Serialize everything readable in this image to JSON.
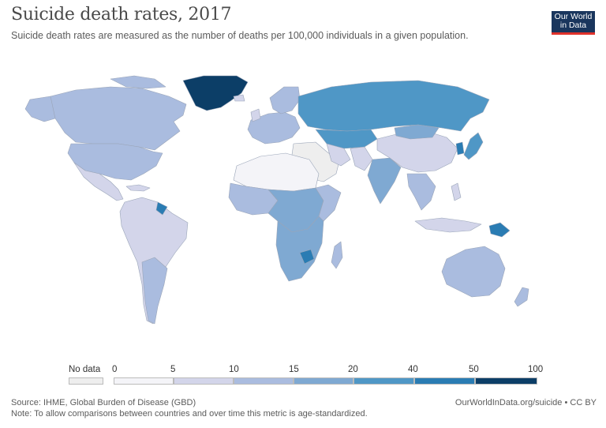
{
  "header": {
    "title": "Suicide death rates, 2017",
    "subtitle": "Suicide death rates are measured as the number of deaths per 100,000 individuals in a given population."
  },
  "logo": {
    "line1": "Our World",
    "line2": "in Data"
  },
  "legend": {
    "no_data_label": "No data",
    "ticks": [
      "0",
      "5",
      "10",
      "15",
      "20",
      "40",
      "50",
      "100"
    ],
    "colors": [
      "#f4f4f8",
      "#d3d5ea",
      "#aabcdf",
      "#7fa9d2",
      "#4f97c6",
      "#2a7cb3",
      "#1b5e92",
      "#0c3e67"
    ],
    "no_data_color": "#eeeeee"
  },
  "footer": {
    "source": "Source: IHME, Global Burden of Disease (GBD)",
    "note": "Note: To allow comparisons between countries and over time this metric is age-standardized.",
    "url": "OurWorldInData.org/suicide • CC BY"
  }
}
